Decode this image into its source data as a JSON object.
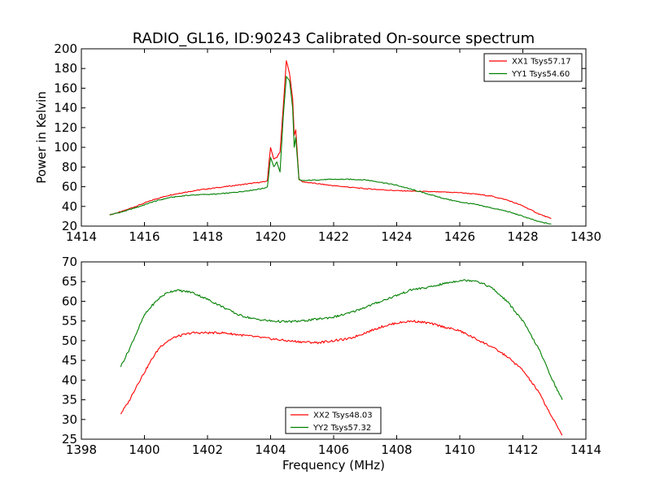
{
  "figure": {
    "title": "RADIO_GL16, ID:90243 Calibrated On-source spectrum",
    "xlabel": "Frequency (MHz)"
  },
  "colors": {
    "red": "#ff0000",
    "green": "#008000"
  },
  "chart_data": [
    {
      "type": "line",
      "title": "RADIO_GL16, ID:90243 Calibrated On-source spectrum",
      "xlabel": "",
      "ylabel": "Power in Kelvin",
      "xlim": [
        1414,
        1430
      ],
      "ylim": [
        20,
        200
      ],
      "xticks": [
        1414,
        1416,
        1418,
        1420,
        1422,
        1424,
        1426,
        1428,
        1430
      ],
      "yticks": [
        20,
        40,
        60,
        80,
        100,
        120,
        140,
        160,
        180,
        200
      ],
      "legend_position": "top-right",
      "grid": false,
      "series": [
        {
          "name": "XX1 Tsys57.17",
          "color": "#ff0000",
          "points": [
            [
              1414.9,
              31.5
            ],
            [
              1415.3,
              35
            ],
            [
              1415.8,
              41
            ],
            [
              1416.3,
              47
            ],
            [
              1416.8,
              51.5
            ],
            [
              1417.3,
              54.5
            ],
            [
              1417.8,
              57
            ],
            [
              1418.3,
              59
            ],
            [
              1418.8,
              61
            ],
            [
              1419.3,
              63
            ],
            [
              1419.8,
              65
            ],
            [
              1419.9,
              66
            ],
            [
              1419.95,
              85
            ],
            [
              1420.0,
              100
            ],
            [
              1420.1,
              88
            ],
            [
              1420.2,
              90
            ],
            [
              1420.3,
              95
            ],
            [
              1420.4,
              140
            ],
            [
              1420.5,
              188
            ],
            [
              1420.6,
              175
            ],
            [
              1420.7,
              150
            ],
            [
              1420.75,
              112
            ],
            [
              1420.8,
              118
            ],
            [
              1420.9,
              68
            ],
            [
              1421.0,
              65
            ],
            [
              1421.5,
              63
            ],
            [
              1422.0,
              61
            ],
            [
              1422.5,
              59.5
            ],
            [
              1423.0,
              58
            ],
            [
              1423.5,
              57
            ],
            [
              1424.0,
              56
            ],
            [
              1424.5,
              55.5
            ],
            [
              1425.0,
              55
            ],
            [
              1425.5,
              54.5
            ],
            [
              1426.0,
              54
            ],
            [
              1426.5,
              52.5
            ],
            [
              1427.0,
              50.5
            ],
            [
              1427.5,
              46.5
            ],
            [
              1428.0,
              40.5
            ],
            [
              1428.5,
              32.5
            ],
            [
              1428.9,
              27.5
            ]
          ]
        },
        {
          "name": "YY1 Tsys54.60",
          "color": "#008000",
          "points": [
            [
              1414.9,
              31.5
            ],
            [
              1415.3,
              34.5
            ],
            [
              1415.8,
              39.5
            ],
            [
              1416.3,
              45
            ],
            [
              1416.8,
              49
            ],
            [
              1417.3,
              51
            ],
            [
              1417.8,
              52
            ],
            [
              1418.3,
              52.5
            ],
            [
              1418.8,
              54
            ],
            [
              1419.3,
              56
            ],
            [
              1419.8,
              58.5
            ],
            [
              1419.9,
              60
            ],
            [
              1419.95,
              75
            ],
            [
              1420.0,
              90
            ],
            [
              1420.1,
              80
            ],
            [
              1420.2,
              85
            ],
            [
              1420.3,
              75
            ],
            [
              1420.4,
              130
            ],
            [
              1420.5,
              172
            ],
            [
              1420.6,
              168
            ],
            [
              1420.7,
              140
            ],
            [
              1420.75,
              100
            ],
            [
              1420.8,
              110
            ],
            [
              1420.9,
              67
            ],
            [
              1421.0,
              66
            ],
            [
              1421.5,
              67
            ],
            [
              1422.0,
              67.5
            ],
            [
              1422.5,
              67.5
            ],
            [
              1423.0,
              67
            ],
            [
              1423.5,
              64.5
            ],
            [
              1424.0,
              61.5
            ],
            [
              1424.5,
              57
            ],
            [
              1425.0,
              52.5
            ],
            [
              1425.5,
              48
            ],
            [
              1426.0,
              44.5
            ],
            [
              1426.5,
              42
            ],
            [
              1427.0,
              38.5
            ],
            [
              1427.5,
              35
            ],
            [
              1428.0,
              30
            ],
            [
              1428.5,
              24.5
            ],
            [
              1428.9,
              22
            ]
          ]
        }
      ]
    },
    {
      "type": "line",
      "title": "",
      "xlabel": "Frequency (MHz)",
      "ylabel": "",
      "xlim": [
        1398,
        1414
      ],
      "ylim": [
        25,
        70
      ],
      "xticks": [
        1398,
        1400,
        1402,
        1404,
        1406,
        1408,
        1410,
        1412,
        1414
      ],
      "yticks": [
        25,
        30,
        35,
        40,
        45,
        50,
        55,
        60,
        65,
        70
      ],
      "legend_position": "bottom-center",
      "grid": false,
      "series": [
        {
          "name": "XX2 Tsys48.03",
          "color": "#ff0000",
          "points": [
            [
              1399.25,
              31.5
            ],
            [
              1399.5,
              34.5
            ],
            [
              1399.75,
              38.5
            ],
            [
              1400,
              42
            ],
            [
              1400.25,
              45.5
            ],
            [
              1400.5,
              48.5
            ],
            [
              1400.75,
              50
            ],
            [
              1401,
              51
            ],
            [
              1401.5,
              52
            ],
            [
              1402,
              52
            ],
            [
              1402.5,
              52
            ],
            [
              1403,
              51.5
            ],
            [
              1403.5,
              51
            ],
            [
              1404,
              50.5
            ],
            [
              1404.5,
              50
            ],
            [
              1405,
              49.7
            ],
            [
              1405.5,
              49.5
            ],
            [
              1406,
              50
            ],
            [
              1406.5,
              50.5
            ],
            [
              1407,
              52
            ],
            [
              1407.5,
              53.5
            ],
            [
              1408,
              54.5
            ],
            [
              1408.5,
              55
            ],
            [
              1409,
              54.5
            ],
            [
              1409.5,
              53.5
            ],
            [
              1410,
              52.5
            ],
            [
              1410.5,
              50.5
            ],
            [
              1411,
              48.5
            ],
            [
              1411.5,
              46
            ],
            [
              1412,
              42.5
            ],
            [
              1412.5,
              37
            ],
            [
              1413,
              29.5
            ],
            [
              1413.25,
              26
            ]
          ]
        },
        {
          "name": "YY2 Tsys57.32",
          "color": "#008000",
          "points": [
            [
              1399.25,
              43.5
            ],
            [
              1399.5,
              47.5
            ],
            [
              1399.75,
              52
            ],
            [
              1400,
              56.5
            ],
            [
              1400.25,
              59
            ],
            [
              1400.5,
              61
            ],
            [
              1400.75,
              62.3
            ],
            [
              1401,
              62.8
            ],
            [
              1401.5,
              62.3
            ],
            [
              1402,
              60.5
            ],
            [
              1402.5,
              58.5
            ],
            [
              1403,
              56.5
            ],
            [
              1403.5,
              55.5
            ],
            [
              1404,
              55
            ],
            [
              1404.5,
              54.8
            ],
            [
              1405,
              55
            ],
            [
              1405.5,
              55.5
            ],
            [
              1406,
              56
            ],
            [
              1406.5,
              57
            ],
            [
              1407,
              58.5
            ],
            [
              1407.5,
              60
            ],
            [
              1408,
              61.5
            ],
            [
              1408.5,
              63
            ],
            [
              1409,
              63.5
            ],
            [
              1409.5,
              64.5
            ],
            [
              1410,
              65.3
            ],
            [
              1410.5,
              65.3
            ],
            [
              1411,
              63.5
            ],
            [
              1411.5,
              60
            ],
            [
              1412,
              55
            ],
            [
              1412.5,
              48
            ],
            [
              1413,
              39
            ],
            [
              1413.25,
              35
            ]
          ]
        }
      ]
    }
  ]
}
